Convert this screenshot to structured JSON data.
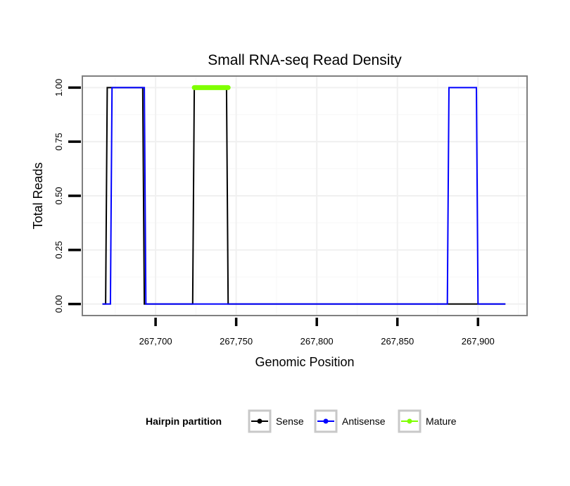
{
  "chart_data": {
    "type": "line",
    "title": "Small RNA-seq Read Density",
    "xlabel": "Genomic Position",
    "ylabel": "Total Reads",
    "xlim": [
      267655,
      267930
    ],
    "ylim": [
      -0.05,
      1.05
    ],
    "x_ticks": [
      267700,
      267750,
      267800,
      267850,
      267900
    ],
    "x_tick_labels": [
      "267,700",
      "267,750",
      "267,800",
      "267,850",
      "267,900"
    ],
    "y_ticks": [
      0,
      0.25,
      0.5,
      0.75,
      1
    ],
    "y_tick_labels": [
      "0.00",
      "0.25",
      "0.50",
      "0.75",
      "1.00"
    ],
    "grid": true,
    "series": [
      {
        "name": "Sense",
        "color": "#000000",
        "x": [
          267667,
          267669,
          267670,
          267692,
          267693,
          267723,
          267724,
          267744,
          267745,
          267917
        ],
        "y": [
          0,
          0,
          1,
          1,
          0,
          0,
          1,
          1,
          0,
          0
        ]
      },
      {
        "name": "Antisense",
        "color": "#0000ff",
        "x": [
          267667,
          267672,
          267673,
          267693,
          267694,
          267881,
          267882,
          267899,
          267900,
          267917
        ],
        "y": [
          0,
          0,
          1,
          1,
          0,
          0,
          1,
          1,
          0,
          0
        ]
      },
      {
        "name": "Mature",
        "color": "#7fff00",
        "x": [
          267724,
          267745
        ],
        "y": [
          1,
          1
        ]
      }
    ],
    "legend": {
      "title": "Hairpin partition",
      "position": "bottom",
      "entries": [
        {
          "label": "Sense",
          "color": "#000000"
        },
        {
          "label": "Antisense",
          "color": "#0000ff"
        },
        {
          "label": "Mature",
          "color": "#7fff00"
        }
      ]
    }
  }
}
